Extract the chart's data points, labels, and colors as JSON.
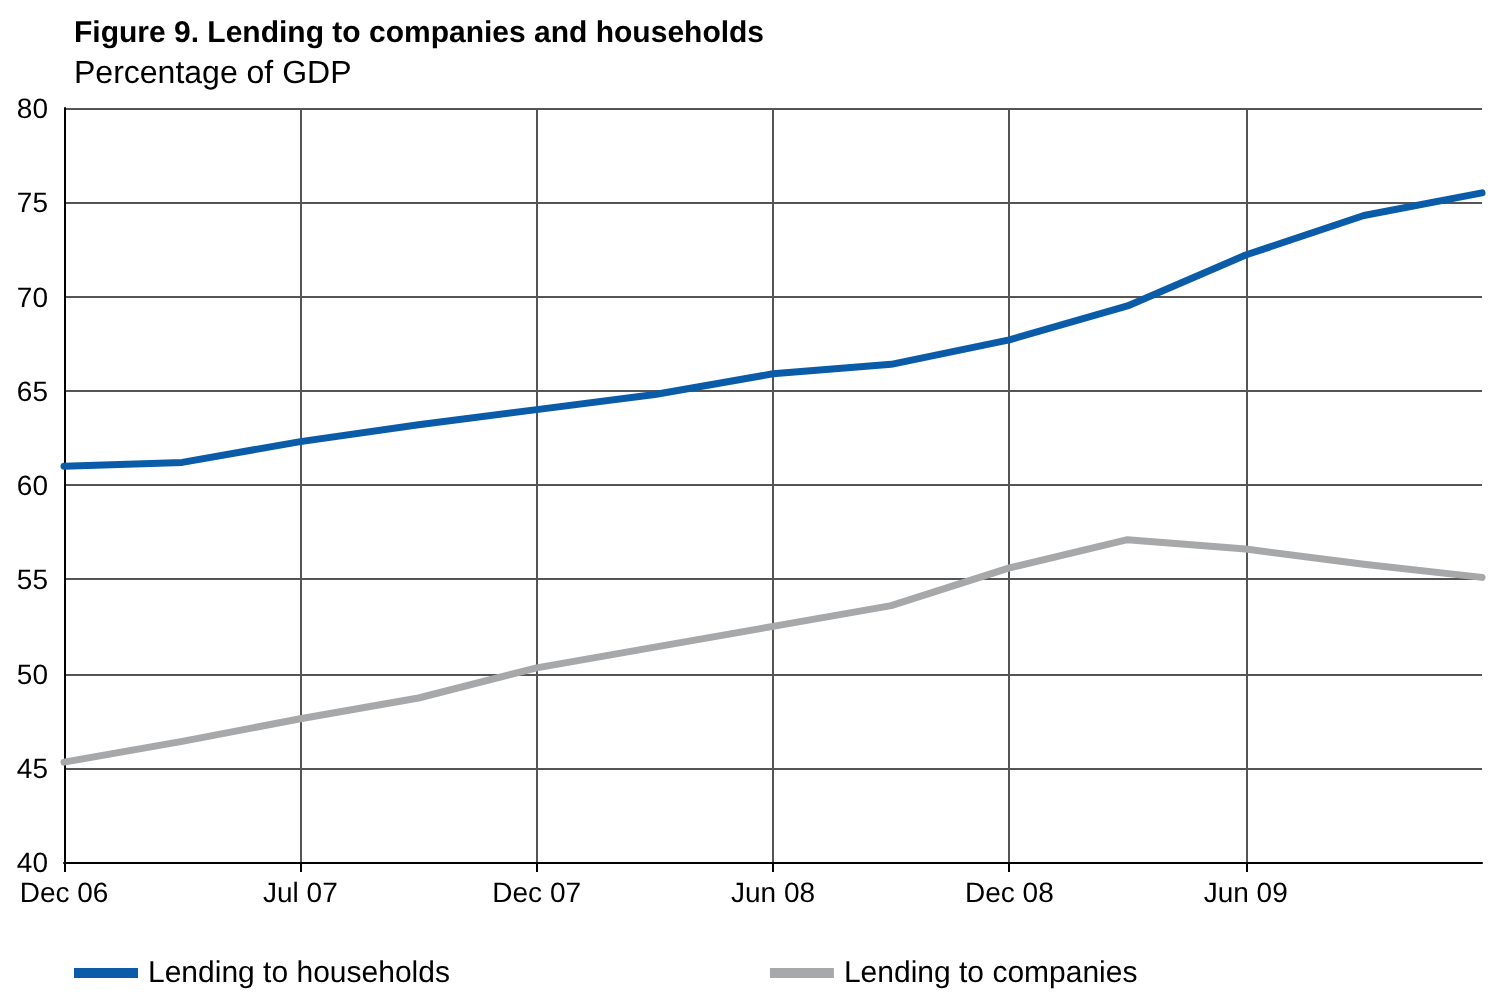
{
  "chart_data": {
    "type": "line",
    "title": "Figure 9. Lending to companies and households",
    "subtitle": "Percentage of GDP",
    "categories": [
      "Dec 06",
      null,
      "Jul 07",
      null,
      "Dec 07",
      null,
      "Jun 08",
      null,
      "Dec 08",
      null,
      "Jun 09",
      null,
      null
    ],
    "ylim": [
      40,
      80
    ],
    "yticks": [
      40,
      45,
      50,
      55,
      60,
      65,
      70,
      75,
      80
    ],
    "series": [
      {
        "name": "Lending to households",
        "color": "#0a5ca8",
        "values": [
          61.0,
          61.2,
          62.3,
          63.2,
          64.0,
          64.8,
          65.9,
          66.4,
          67.7,
          69.5,
          72.2,
          74.3,
          75.5
        ]
      },
      {
        "name": "Lending to companies",
        "color": "#a7a8aa",
        "values": [
          45.3,
          46.4,
          47.6,
          48.7,
          50.3,
          51.4,
          52.5,
          53.6,
          55.6,
          57.1,
          56.6,
          55.8,
          55.1
        ]
      }
    ],
    "grid": true,
    "legend": "bottom",
    "marker": "none",
    "line_style": "solid"
  }
}
